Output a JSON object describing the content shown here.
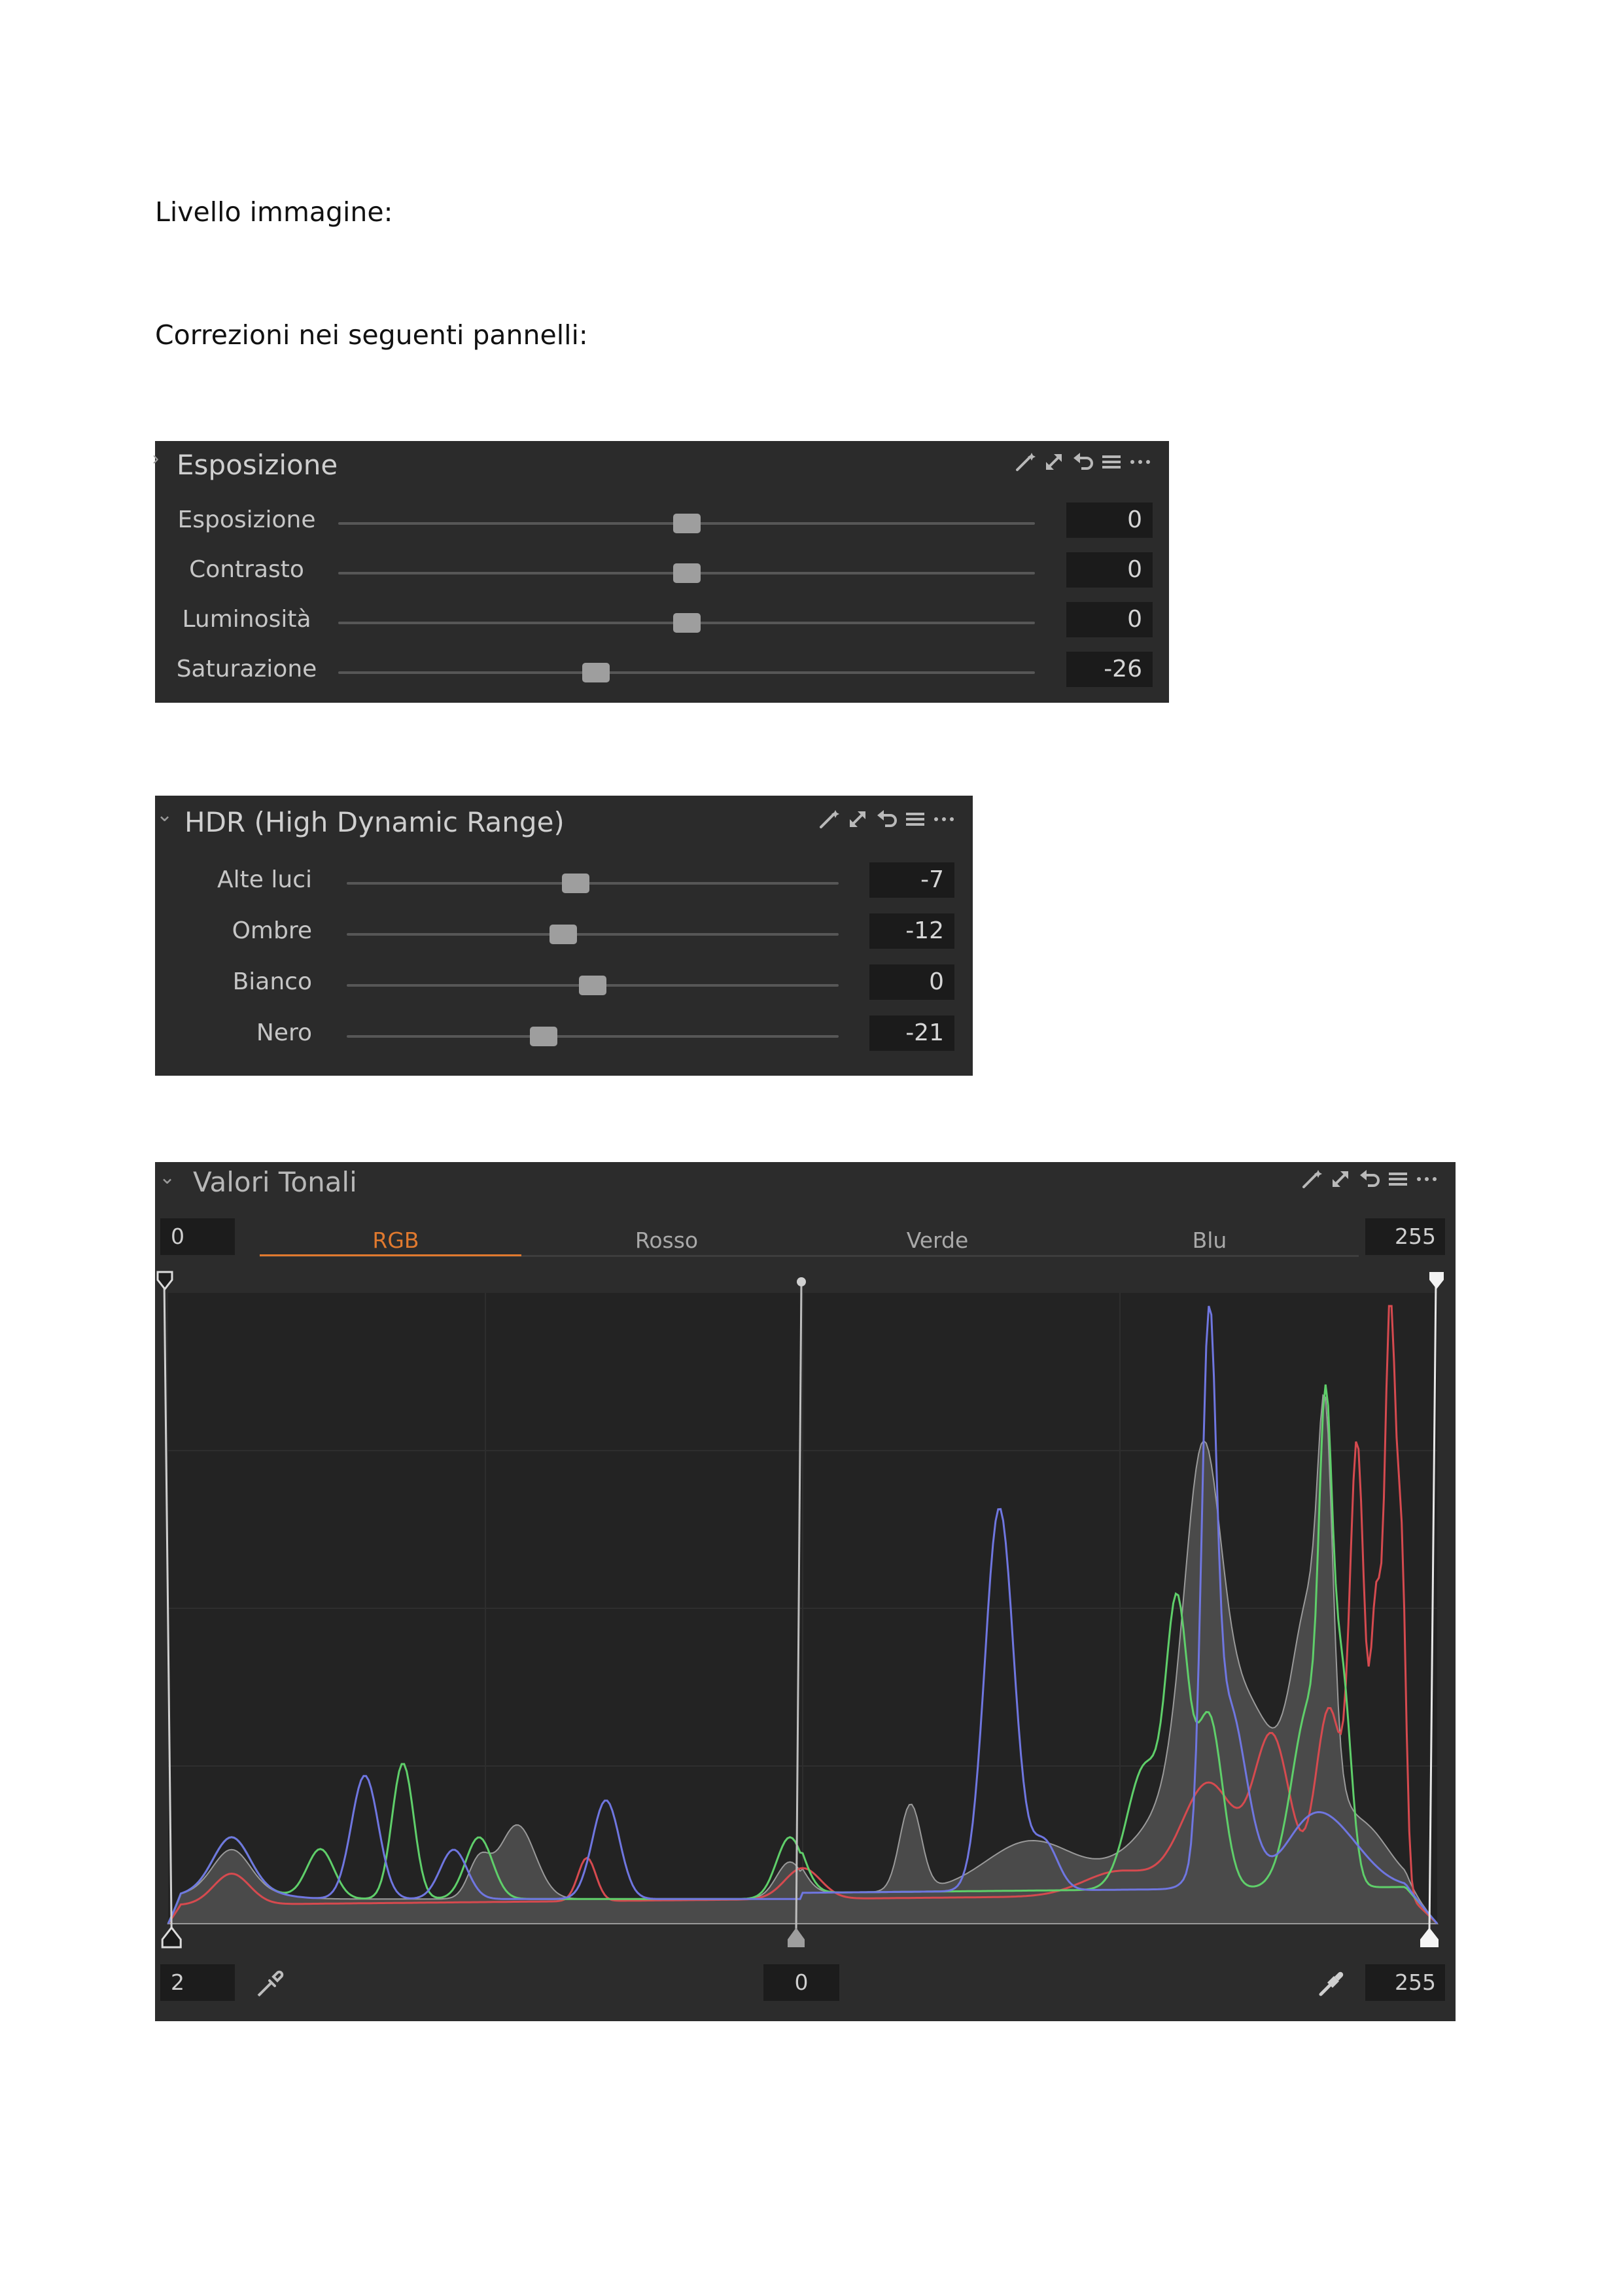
{
  "document": {
    "line1": "Livello immagine:",
    "line2": "Correzioni nei seguenti pannelli:"
  },
  "header_icons": [
    "wand-icon",
    "expand-icon",
    "reset-icon",
    "presets-menu-icon",
    "more-icon"
  ],
  "exposure": {
    "title": "Esposizione",
    "sliders": [
      {
        "label": "Esposizione",
        "value": "0",
        "level": 0.5
      },
      {
        "label": "Contrasto",
        "value": "0",
        "level": 0.5
      },
      {
        "label": "Luminosità",
        "value": "0",
        "level": 0.5
      },
      {
        "label": "Saturazione",
        "value": "-26",
        "level": 0.37
      }
    ]
  },
  "hdr": {
    "title": "HDR (High Dynamic Range)",
    "sliders": [
      {
        "label": "Alte luci",
        "value": "-7",
        "level": 0.465
      },
      {
        "label": "Ombre",
        "value": "-12",
        "level": 0.44
      },
      {
        "label": "Bianco",
        "value": "0",
        "level": 0.5
      },
      {
        "label": "Nero",
        "value": "-21",
        "level": 0.4
      }
    ]
  },
  "levels": {
    "title": "Valori Tonali",
    "input_black": "0",
    "input_white": "255",
    "tabs": [
      {
        "label": "RGB",
        "active": true
      },
      {
        "label": "Rosso",
        "active": false
      },
      {
        "label": "Verde",
        "active": false
      },
      {
        "label": "Blu",
        "active": false
      }
    ],
    "output_black": "2",
    "midtone": "0",
    "output_white": "255",
    "colors": {
      "accent": "#e0792e",
      "red": "#d64a4f",
      "green": "#5fcf6a",
      "blue": "#6f76e0",
      "gray": "#9a9a9a"
    }
  }
}
